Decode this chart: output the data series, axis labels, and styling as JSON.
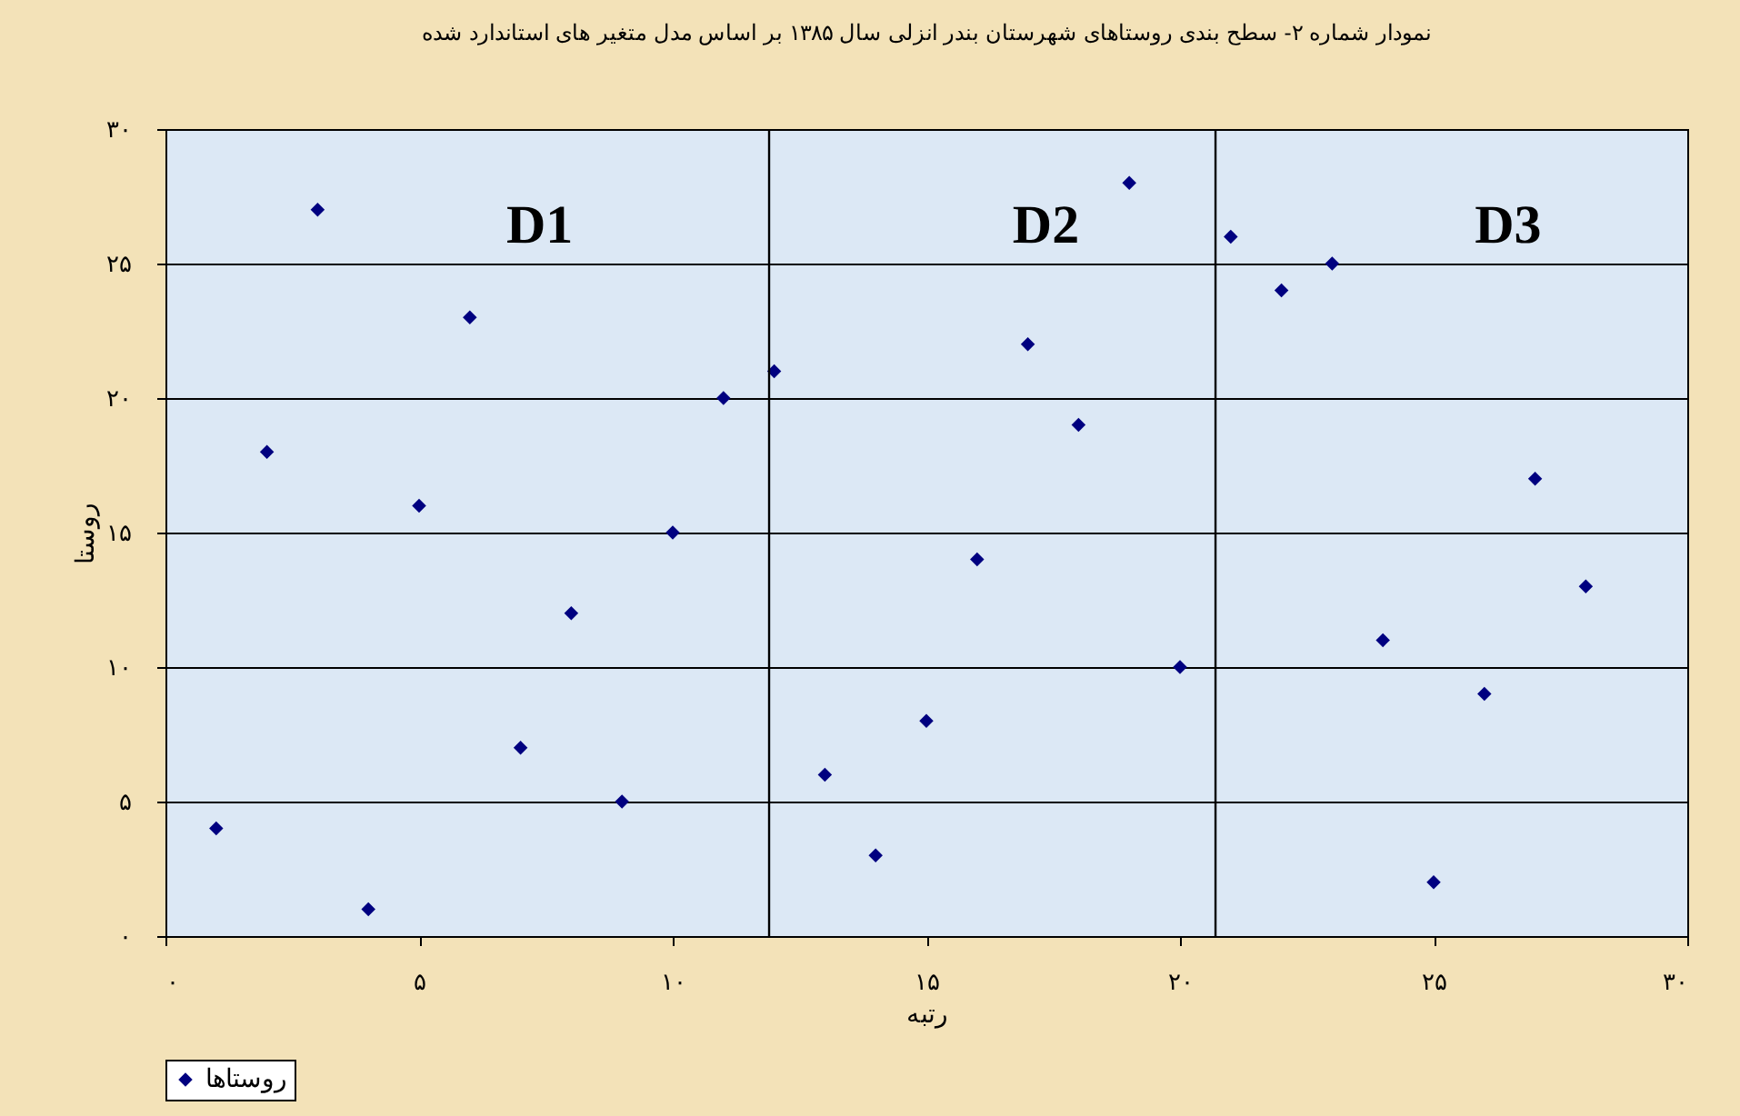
{
  "chart_data": {
    "type": "scatter",
    "title": "نمودار شماره ۲- سطح بندی روستاهای شهرستان بندر انزلی سال ۱۳۸۵ بر اساس مدل متغیر های استاندارد شده",
    "xlabel": "رتبه",
    "ylabel": "روستا",
    "x": [
      1,
      2,
      3,
      4,
      5,
      6,
      7,
      8,
      9,
      10,
      11,
      12,
      13,
      14,
      15,
      16,
      17,
      18,
      19,
      20,
      21,
      22,
      23,
      24,
      25,
      26,
      27,
      28
    ],
    "series": [
      {
        "name": "روستاها",
        "color": "#000080",
        "values": [
          4,
          18,
          27,
          1,
          16,
          23,
          7,
          12,
          5,
          15,
          20,
          21,
          6,
          3,
          8,
          14,
          22,
          19,
          28,
          10,
          26,
          24,
          25,
          11,
          2,
          9,
          17,
          13
        ]
      }
    ],
    "xlim": [
      0,
      30
    ],
    "ylim": [
      0,
      30
    ],
    "xticks": [
      {
        "value": 0,
        "label": "۰"
      },
      {
        "value": 5,
        "label": "۵"
      },
      {
        "value": 10,
        "label": "۱۰"
      },
      {
        "value": 15,
        "label": "۱۵"
      },
      {
        "value": 20,
        "label": "۲۰"
      },
      {
        "value": 25,
        "label": "۲۵"
      },
      {
        "value": 30,
        "label": "۳۰"
      }
    ],
    "yticks": [
      {
        "value": 0,
        "label": "۰"
      },
      {
        "value": 5,
        "label": "۵"
      },
      {
        "value": 10,
        "label": "۱۰"
      },
      {
        "value": 15,
        "label": "۱۵"
      },
      {
        "value": 20,
        "label": "۲۰"
      },
      {
        "value": 25,
        "label": "۲۵"
      },
      {
        "value": 30,
        "label": "۳۰"
      }
    ],
    "ref_lines": [
      {
        "axis": "x",
        "value": 11.9,
        "color": "#000000"
      },
      {
        "axis": "x",
        "value": 20.7,
        "color": "#000000"
      }
    ],
    "annotations": [
      "D1",
      "D2",
      "D3"
    ],
    "grid": "y",
    "legend": "bottom",
    "marker": "diamond"
  }
}
